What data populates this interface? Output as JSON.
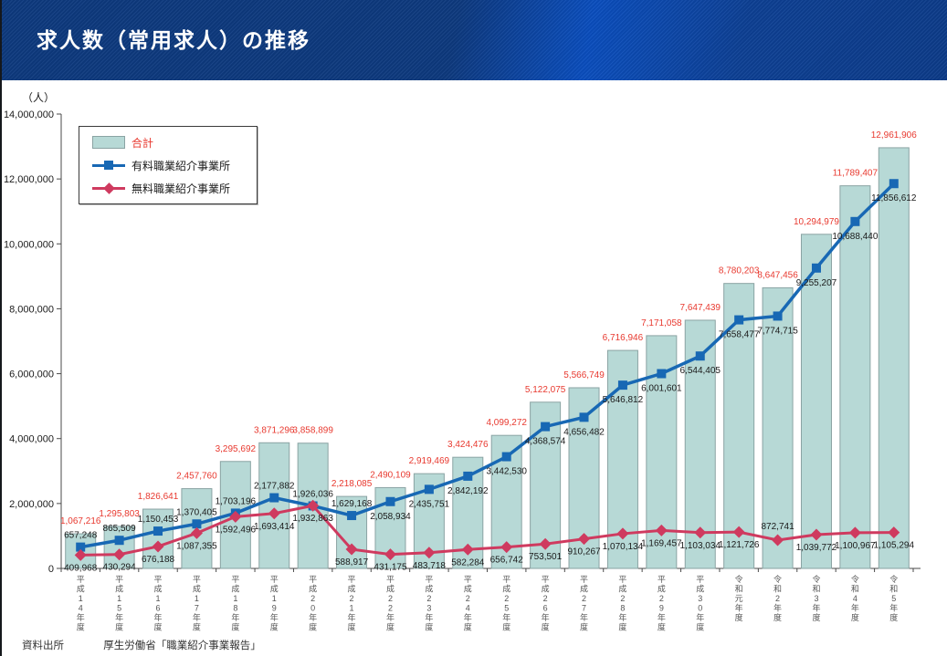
{
  "header": {
    "title": "求人数（常用求人）の推移"
  },
  "y_axis": {
    "unit": "（人）"
  },
  "legend": {
    "items": [
      {
        "label": "合計",
        "type": "bar"
      },
      {
        "label": "有料職業紹介事業所",
        "type": "line-square"
      },
      {
        "label": "無料職業紹介事業所",
        "type": "line-diamond"
      }
    ]
  },
  "source": {
    "label": "資料出所",
    "text": "厚生労働省「職業紹介事業報告」"
  },
  "colors": {
    "bar_fill": "#b7d9d6",
    "bar_border": "#8aa3a3",
    "paid_line": "#1868b4",
    "free_line": "#cf3a5f",
    "total_label": "#e8392f",
    "value_label": "#1a1a1a",
    "axis": "#4a4a4a",
    "tick_label": "#555555",
    "header_navy": "#0e3a80",
    "header_bright": "#0b4fc0"
  },
  "chart_data": {
    "type": "bar",
    "title": "求人数（常用求人）の推移",
    "ylabel": "（人）",
    "ylim": [
      0,
      14000000
    ],
    "ytick_step": 2000000,
    "grid": false,
    "legend_position": "upper-left",
    "categories": [
      "平成14年度",
      "平成15年度",
      "平成16年度",
      "平成17年度",
      "平成18年度",
      "平成19年度",
      "平成20年度",
      "平成21年度",
      "平成22年度",
      "平成23年度",
      "平成24年度",
      "平成25年度",
      "平成26年度",
      "平成27年度",
      "平成28年度",
      "平成29年度",
      "平成30年度",
      "令和元年度",
      "令和2年度",
      "令和3年度",
      "令和4年度",
      "令和5年度"
    ],
    "series": [
      {
        "name": "合計",
        "kind": "bar",
        "values": [
          1067216,
          1295803,
          1826641,
          2457760,
          3295692,
          3871296,
          3858899,
          2218085,
          2490109,
          2919469,
          3424476,
          4099272,
          5122075,
          5566749,
          6716946,
          7171058,
          7647439,
          8780203,
          8647456,
          10294979,
          11789407,
          12961906
        ]
      },
      {
        "name": "有料職業紹介事業所",
        "kind": "line",
        "marker": "square",
        "values": [
          657248,
          865509,
          1150453,
          1370405,
          1703196,
          2177882,
          1926036,
          1629168,
          2058934,
          2435751,
          2842192,
          3442530,
          4368574,
          4656482,
          5646812,
          6001601,
          6544405,
          7658477,
          7774715,
          9255207,
          10688440,
          11856612
        ]
      },
      {
        "name": "無料職業紹介事業所",
        "kind": "line",
        "marker": "diamond",
        "values": [
          409968,
          430294,
          676188,
          1087355,
          1592496,
          1693414,
          1932863,
          588917,
          431175,
          483718,
          582284,
          656742,
          753501,
          910267,
          1070134,
          1169457,
          1103034,
          1121726,
          872741,
          1039772,
          1100967,
          1105294
        ]
      }
    ]
  }
}
